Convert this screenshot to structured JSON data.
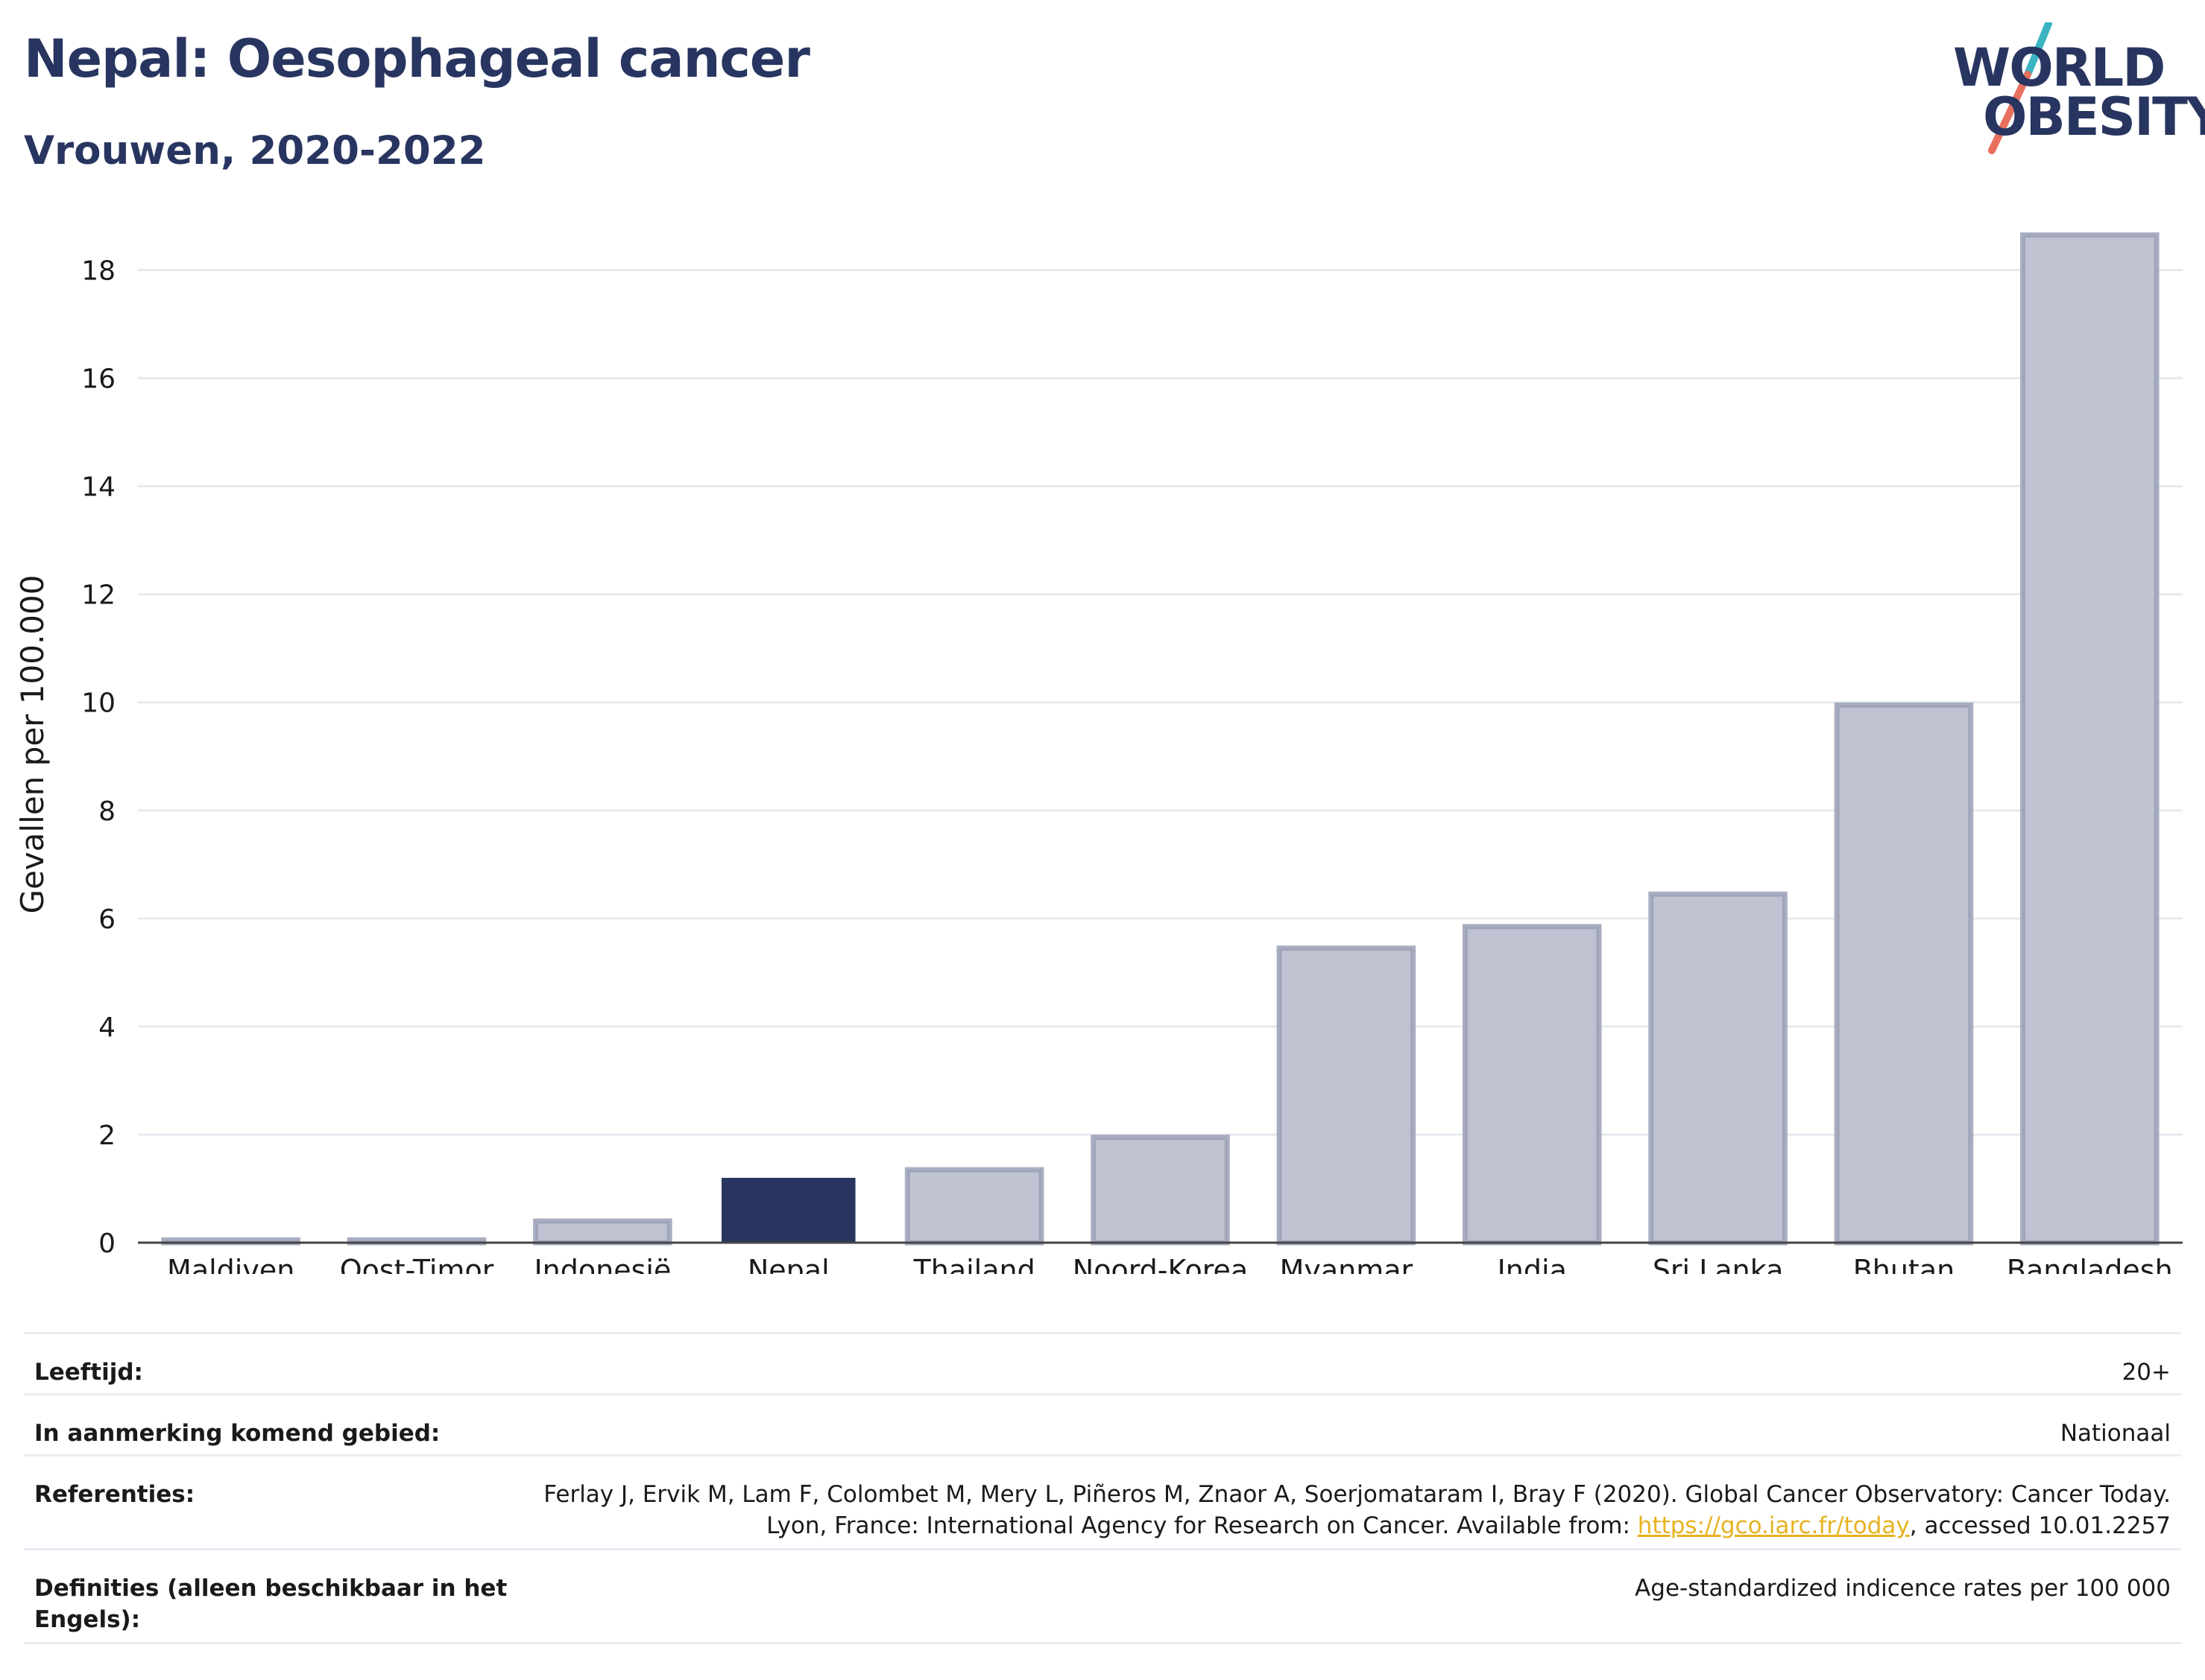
{
  "header": {
    "title": "Nepal: Oesophageal cancer",
    "subtitle": "Vrouwen, 2020-2022"
  },
  "logo": {
    "line1": "WORLD",
    "line2": "OBESITY",
    "colors": {
      "text": "#283560",
      "slash_top": "#3bb4c1",
      "slash_bottom": "#e8705e"
    }
  },
  "chart_data": {
    "type": "bar",
    "title": "Nepal: Oesophageal cancer",
    "subtitle": "Vrouwen, 2020-2022",
    "xlabel": "",
    "ylabel": "Gevallen per 100.000",
    "ylim": [
      0,
      19
    ],
    "yticks": [
      0,
      2,
      4,
      6,
      8,
      10,
      12,
      14,
      16,
      18
    ],
    "grid": true,
    "categories": [
      "Maldiven",
      "Oost-Timor",
      "Indonesië",
      "Nepal",
      "Thailand",
      "Noord-Korea",
      "Myanmar",
      "India",
      "Sri Lanka",
      "Bhutan",
      "Bangladesh"
    ],
    "values": [
      0.05,
      0.05,
      0.4,
      1.2,
      1.35,
      1.95,
      5.45,
      5.85,
      6.45,
      9.95,
      18.65
    ],
    "highlight": "Nepal",
    "colors": {
      "highlight": "#283560",
      "default_fill": "#bfc3d1",
      "default_stroke": "#9aa0b6"
    }
  },
  "info": {
    "rows": [
      {
        "label": "Leeftijd:",
        "value": "20+"
      },
      {
        "label": "In aanmerking komend gebied:",
        "value": "Nationaal"
      },
      {
        "label": "Referenties:",
        "value_pre": "Ferlay J, Ervik M, Lam F, Colombet M, Mery L, Piñeros M, Znaor A, Soerjomataram I, Bray F (2020). Global Cancer Observatory: Cancer Today. Lyon, France: International Agency for Research on Cancer. Available from: ",
        "link": "https://gco.iarc.fr/today",
        "value_post": ", accessed 10.01.2257"
      },
      {
        "label": "Definities (alleen beschikbaar in het Engels):",
        "value": "Age-standardized indicence rates per 100 000"
      }
    ]
  }
}
